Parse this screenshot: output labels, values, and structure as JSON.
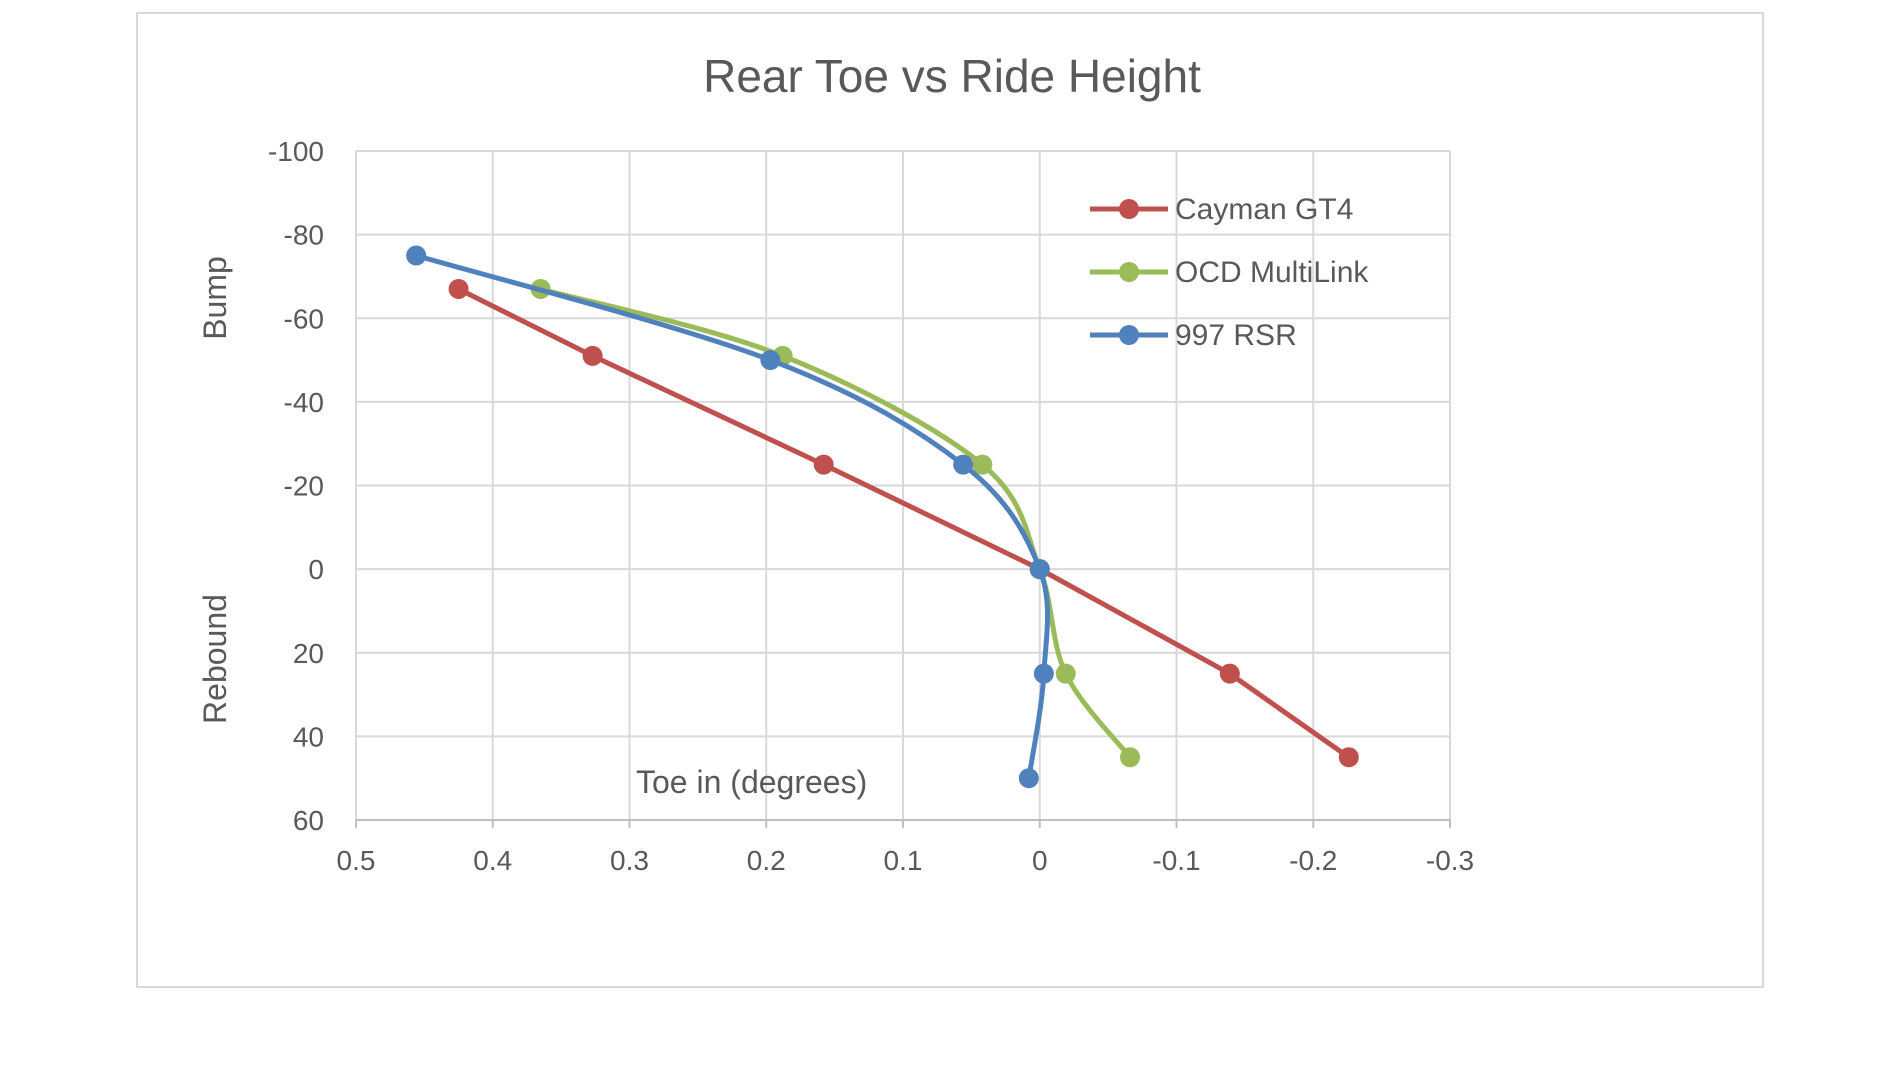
{
  "chart_data": {
    "type": "line",
    "title": "Rear Toe vs Ride Height",
    "xlabel": "Toe in (degrees)",
    "ylabel_top": "Bump",
    "ylabel_bottom": "Rebound",
    "xlim": [
      0.5,
      -0.3
    ],
    "ylim": [
      -100,
      60
    ],
    "x_ticks": [
      0.5,
      0.4,
      0.3,
      0.2,
      0.1,
      0,
      -0.1,
      -0.2,
      -0.3
    ],
    "x_tick_labels": [
      "0.5",
      "0.4",
      "0.3",
      "0.2",
      "0.1",
      "0",
      "-0.1",
      "-0.2",
      "-0.3"
    ],
    "y_ticks": [
      -100,
      -80,
      -60,
      -40,
      -20,
      0,
      20,
      40,
      60
    ],
    "y_tick_labels": [
      "-100",
      "-80",
      "-60",
      "-40",
      "-20",
      "0",
      "20",
      "40",
      "60"
    ],
    "grid": true,
    "legend_position": "top-right",
    "series": [
      {
        "name": "Cayman GT4",
        "color": "#c0504d",
        "smooth": false,
        "points": [
          [
            0.425,
            -67
          ],
          [
            0.327,
            -51
          ],
          [
            0.158,
            -25
          ],
          [
            0.0,
            0
          ],
          [
            -0.139,
            25
          ],
          [
            -0.226,
            45
          ]
        ]
      },
      {
        "name": "OCD MultiLink",
        "color": "#9bbb59",
        "smooth": true,
        "points": [
          [
            0.365,
            -67
          ],
          [
            0.188,
            -51
          ],
          [
            0.042,
            -25
          ],
          [
            0.0,
            0
          ],
          [
            -0.019,
            25
          ],
          [
            -0.066,
            45
          ]
        ]
      },
      {
        "name": "997 RSR",
        "color": "#4f81bd",
        "smooth": true,
        "points": [
          [
            0.456,
            -75
          ],
          [
            0.197,
            -50
          ],
          [
            0.056,
            -25
          ],
          [
            0.0,
            0
          ],
          [
            -0.003,
            25
          ],
          [
            0.008,
            50
          ]
        ]
      }
    ]
  }
}
